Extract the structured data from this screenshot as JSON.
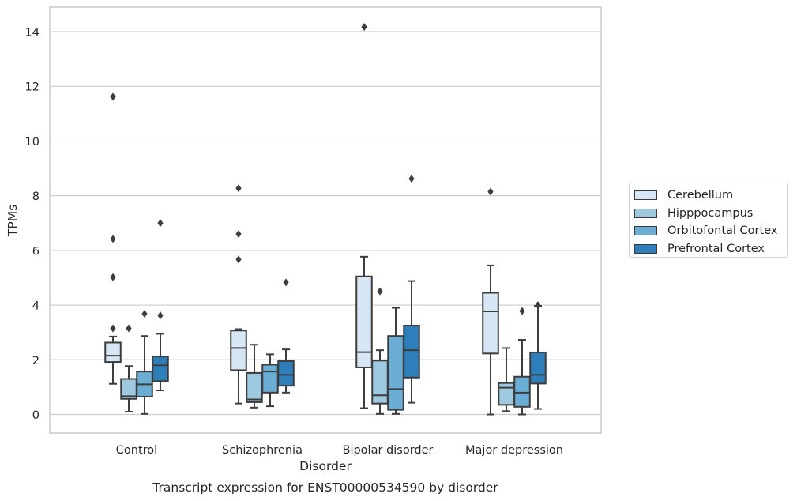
{
  "chart_data": {
    "type": "box",
    "title": "Transcript expression for ENST00000534590 by disorder",
    "xlabel": "Disorder",
    "ylabel": "TPMs",
    "ylim": [
      -0.7,
      14.85
    ],
    "yticks": [
      0,
      2,
      4,
      6,
      8,
      10,
      12,
      14
    ],
    "grid": true,
    "legend_position": "right",
    "categories": [
      "Control",
      "Schizophrenia",
      "Bipolar disorder",
      "Major depression"
    ],
    "series": [
      {
        "name": "Cerebellum",
        "color": "#d6e6f4",
        "boxes": [
          {
            "whisker_low": 1.12,
            "q1": 1.92,
            "median": 2.15,
            "q3": 2.63,
            "whisker_high": 2.85,
            "outliers": [
              3.15,
              5.02,
              6.42,
              11.62
            ]
          },
          {
            "whisker_low": 0.4,
            "q1": 1.62,
            "median": 2.43,
            "q3": 3.07,
            "whisker_high": 3.12,
            "outliers": [
              5.67,
              6.6,
              8.27
            ]
          },
          {
            "whisker_low": 0.23,
            "q1": 1.72,
            "median": 2.28,
            "q3": 5.05,
            "whisker_high": 5.77,
            "outliers": [
              14.17
            ]
          },
          {
            "whisker_low": 0.0,
            "q1": 2.23,
            "median": 3.77,
            "q3": 4.45,
            "whisker_high": 5.45,
            "outliers": [
              8.15
            ]
          }
        ]
      },
      {
        "name": "Hipppocampus",
        "color": "#9ecae1",
        "boxes": [
          {
            "whisker_low": 0.1,
            "q1": 0.57,
            "median": 0.67,
            "q3": 1.3,
            "whisker_high": 1.77,
            "outliers": [
              3.15
            ]
          },
          {
            "whisker_low": 0.25,
            "q1": 0.45,
            "median": 0.55,
            "q3": 1.52,
            "whisker_high": 2.55,
            "outliers": []
          },
          {
            "whisker_low": 0.02,
            "q1": 0.4,
            "median": 0.7,
            "q3": 1.97,
            "whisker_high": 2.35,
            "outliers": [
              4.5
            ]
          },
          {
            "whisker_low": 0.12,
            "q1": 0.35,
            "median": 0.98,
            "q3": 1.15,
            "whisker_high": 2.43,
            "outliers": []
          }
        ]
      },
      {
        "name": "Orbitofontal Cortex",
        "color": "#6aaed6",
        "boxes": [
          {
            "whisker_low": 0.02,
            "q1": 0.65,
            "median": 1.1,
            "q3": 1.57,
            "whisker_high": 2.87,
            "outliers": [
              3.68
            ]
          },
          {
            "whisker_low": 0.3,
            "q1": 0.8,
            "median": 1.57,
            "q3": 1.82,
            "whisker_high": 2.2,
            "outliers": []
          },
          {
            "whisker_low": 0.02,
            "q1": 0.17,
            "median": 0.93,
            "q3": 2.87,
            "whisker_high": 3.9,
            "outliers": []
          },
          {
            "whisker_low": 0.0,
            "q1": 0.28,
            "median": 0.8,
            "q3": 1.38,
            "whisker_high": 2.73,
            "outliers": [
              3.78
            ]
          }
        ]
      },
      {
        "name": "Prefrontal Cortex",
        "color": "#2f7ebc",
        "boxes": [
          {
            "whisker_low": 0.88,
            "q1": 1.22,
            "median": 1.8,
            "q3": 2.12,
            "whisker_high": 2.95,
            "outliers": [
              3.62,
              7.0
            ]
          },
          {
            "whisker_low": 0.8,
            "q1": 1.05,
            "median": 1.45,
            "q3": 1.95,
            "whisker_high": 2.38,
            "outliers": [
              4.83
            ]
          },
          {
            "whisker_low": 0.43,
            "q1": 1.35,
            "median": 2.35,
            "q3": 3.25,
            "whisker_high": 4.88,
            "outliers": [
              8.62
            ]
          },
          {
            "whisker_low": 0.2,
            "q1": 1.13,
            "median": 1.45,
            "q3": 2.27,
            "whisker_high": 3.97,
            "outliers": [
              4.0
            ]
          }
        ]
      }
    ]
  }
}
